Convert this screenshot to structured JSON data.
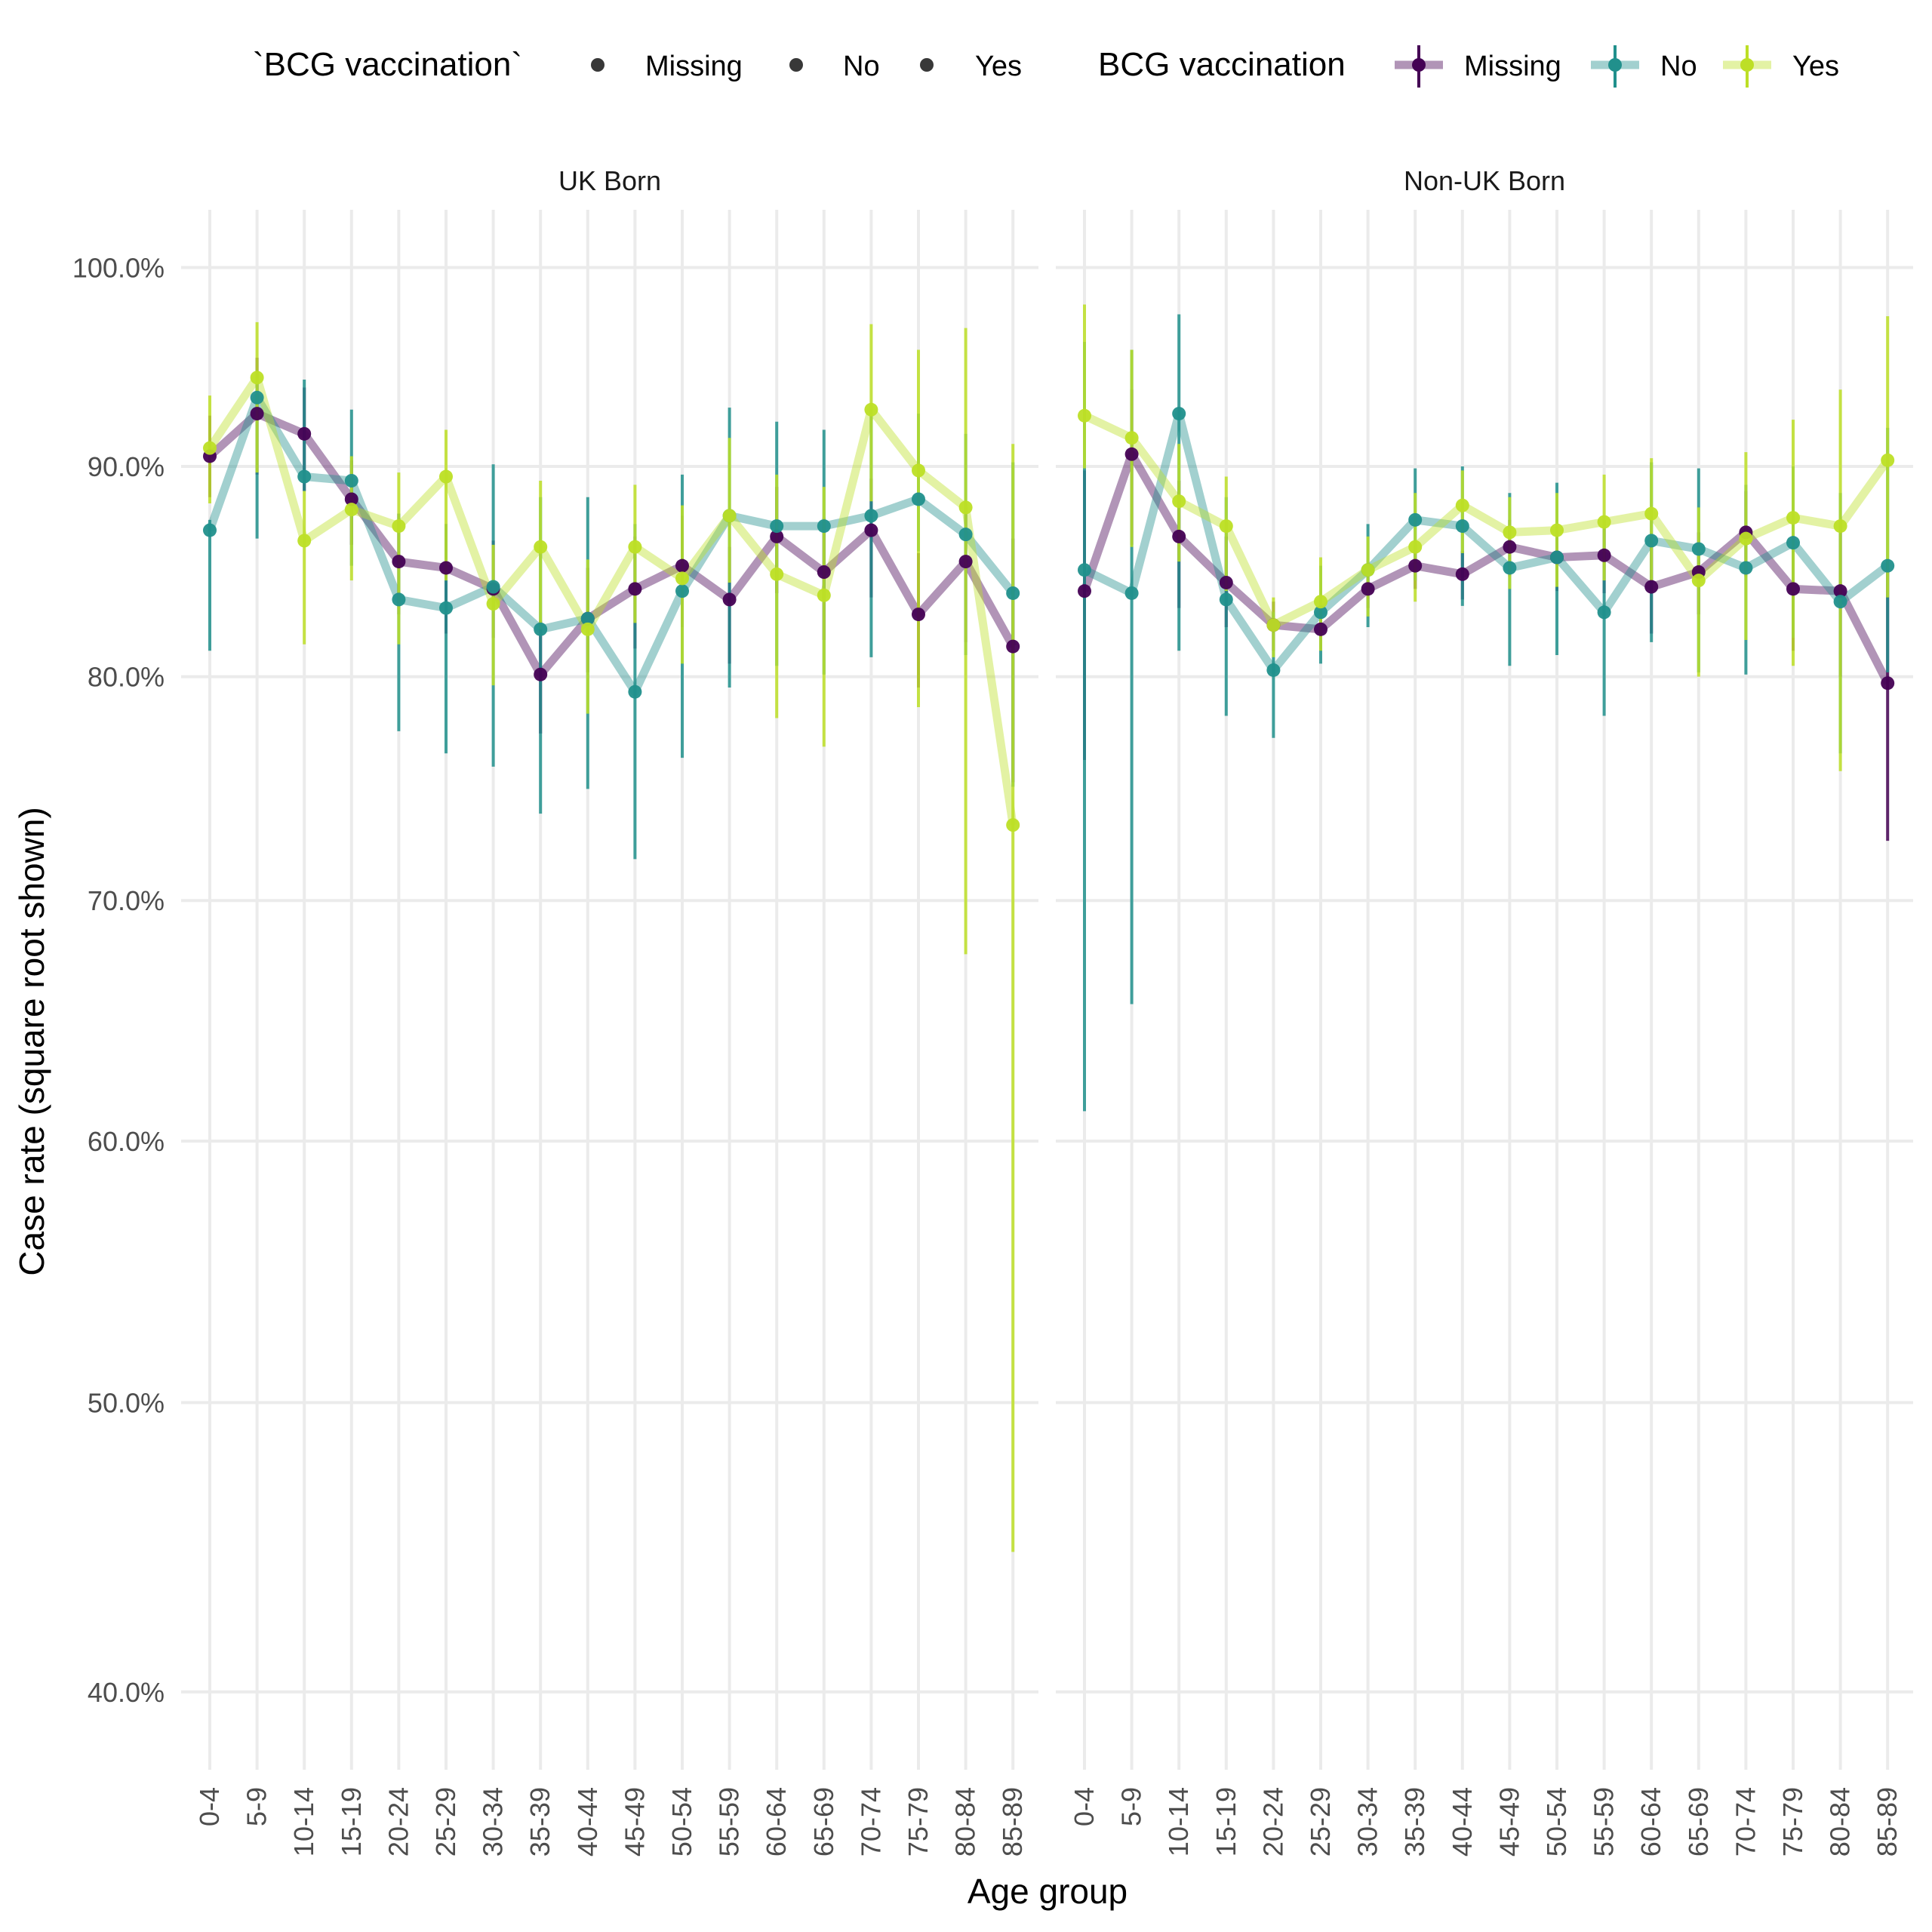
{
  "chart_data": {
    "type": "line",
    "scale": "sqrt",
    "ylabel": "Case rate (square root shown)",
    "xlabel": "Age group",
    "ylim": [
      0.375,
      1.03
    ],
    "yticks": [
      {
        "value": 0.4,
        "label": "40.0%"
      },
      {
        "value": 0.5,
        "label": "50.0%"
      },
      {
        "value": 0.6,
        "label": "60.0%"
      },
      {
        "value": 0.7,
        "label": "70.0%"
      },
      {
        "value": 0.8,
        "label": "80.0%"
      },
      {
        "value": 0.9,
        "label": "90.0%"
      },
      {
        "value": 1.0,
        "label": "100.0%"
      }
    ],
    "categories": [
      "0-4",
      "5-9",
      "10-14",
      "15-19",
      "20-24",
      "25-29",
      "30-34",
      "35-39",
      "40-44",
      "45-49",
      "50-54",
      "55-59",
      "60-64",
      "65-69",
      "70-74",
      "75-79",
      "80-84",
      "85-89"
    ],
    "grid": true,
    "legend": {
      "position": "top",
      "point_title": "`BCG vaccination`",
      "line_title": "BCG vaccination",
      "entries": [
        "Missing",
        "No",
        "Yes"
      ]
    },
    "panels": [
      {
        "title": "UK Born",
        "series": [
          {
            "name": "Missing",
            "color": "#440154",
            "values": [
              0.905,
              0.926,
              0.916,
              0.884,
              0.854,
              0.851,
              0.841,
              0.801,
              0.827,
              0.841,
              0.852,
              0.836,
              0.866,
              0.849,
              0.869,
              0.829,
              0.854,
              0.814
            ],
            "lower": [
              0.885,
              0.896,
              0.888,
              0.862,
              0.829,
              0.82,
              0.818,
              0.774,
              0.802,
              0.813,
              0.823,
              0.806,
              0.839,
              0.817,
              0.837,
              0.795,
              0.816,
              0.752
            ],
            "upper": [
              0.925,
              0.954,
              0.939,
              0.903,
              0.877,
              0.872,
              0.864,
              0.826,
              0.851,
              0.866,
              0.876,
              0.861,
              0.89,
              0.875,
              0.894,
              0.858,
              0.88,
              0.865
            ]
          },
          {
            "name": "No",
            "color": "#21908C",
            "values": [
              0.869,
              0.934,
              0.895,
              0.893,
              0.836,
              0.832,
              0.842,
              0.822,
              0.827,
              0.793,
              0.84,
              0.876,
              0.871,
              0.871,
              0.876,
              0.884,
              0.867,
              0.839
            ],
            "lower": [
              0.812,
              0.865,
              0.888,
              0.852,
              0.775,
              0.765,
              0.759,
              0.738,
              0.749,
              0.718,
              0.763,
              0.795,
              0.805,
              0.801,
              0.809,
              0.859,
              0.81,
              0.75
            ],
            "upper": [
              0.874,
              0.944,
              0.943,
              0.928,
              0.877,
              0.872,
              0.901,
              0.885,
              0.885,
              0.872,
              0.896,
              0.929,
              0.922,
              0.918,
              0.928,
              0.926,
              0.916,
              0.902
            ]
          },
          {
            "name": "Yes",
            "color": "#BDDF26",
            "values": [
              0.909,
              0.944,
              0.864,
              0.879,
              0.871,
              0.895,
              0.834,
              0.861,
              0.822,
              0.861,
              0.846,
              0.876,
              0.848,
              0.838,
              0.928,
              0.898,
              0.88,
              0.733
            ],
            "lower": [
              0.882,
              0.897,
              0.815,
              0.845,
              0.815,
              0.845,
              0.796,
              0.822,
              0.783,
              0.825,
              0.806,
              0.844,
              0.781,
              0.768,
              0.883,
              0.786,
              0.677,
              0.447
            ],
            "upper": [
              0.935,
              0.972,
              0.888,
              0.905,
              0.897,
              0.918,
              0.862,
              0.893,
              0.855,
              0.891,
              0.881,
              0.914,
              0.896,
              0.89,
              0.971,
              0.958,
              0.969,
              0.911
            ]
          }
        ]
      },
      {
        "title": "Non-UK Born",
        "series": [
          {
            "name": "Missing",
            "color": "#440154",
            "values": [
              0.84,
              0.906,
              0.866,
              0.844,
              0.824,
              0.822,
              0.841,
              0.852,
              0.848,
              0.861,
              0.856,
              0.857,
              0.842,
              0.849,
              0.868,
              0.841,
              0.84,
              0.797
            ],
            "lower": [
              0.762,
              0.862,
              0.832,
              0.823,
              0.812,
              0.812,
              0.832,
              0.841,
              0.836,
              0.847,
              0.84,
              0.839,
              0.82,
              0.829,
              0.847,
              0.812,
              0.8,
              0.726
            ],
            "upper": [
              0.898,
              0.938,
              0.893,
              0.866,
              0.835,
              0.831,
              0.85,
              0.862,
              0.859,
              0.874,
              0.87,
              0.874,
              0.863,
              0.868,
              0.888,
              0.866,
              0.874,
              0.854
            ]
          },
          {
            "name": "No",
            "color": "#21908C",
            "values": [
              0.85,
              0.839,
              0.926,
              0.836,
              0.803,
              0.83,
              0.85,
              0.874,
              0.871,
              0.851,
              0.856,
              0.83,
              0.864,
              0.86,
              0.851,
              0.863,
              0.835,
              0.852
            ],
            "lower": [
              0.612,
              0.656,
              0.812,
              0.782,
              0.772,
              0.806,
              0.823,
              0.845,
              0.833,
              0.805,
              0.81,
              0.782,
              0.816,
              0.802,
              0.801,
              0.818,
              0.765,
              0.802
            ],
            "upper": [
              0.962,
              0.958,
              0.976,
              0.885,
              0.83,
              0.852,
              0.872,
              0.899,
              0.9,
              0.887,
              0.892,
              0.874,
              0.902,
              0.899,
              0.891,
              0.9,
              0.887,
              0.919
            ]
          },
          {
            "name": "Yes",
            "color": "#BDDF26",
            "values": [
              0.925,
              0.914,
              0.883,
              0.871,
              0.824,
              0.835,
              0.85,
              0.861,
              0.881,
              0.868,
              0.869,
              0.873,
              0.877,
              0.845,
              0.865,
              0.875,
              0.871,
              0.903
            ],
            "lower": [
              0.899,
              0.861,
              0.854,
              0.84,
              0.809,
              0.812,
              0.828,
              0.835,
              0.858,
              0.841,
              0.842,
              0.845,
              0.845,
              0.8,
              0.817,
              0.805,
              0.757,
              0.837
            ],
            "upper": [
              0.981,
              0.958,
              0.911,
              0.895,
              0.837,
              0.856,
              0.866,
              0.887,
              0.898,
              0.885,
              0.887,
              0.896,
              0.904,
              0.88,
              0.907,
              0.923,
              0.938,
              0.975
            ]
          }
        ]
      }
    ]
  }
}
